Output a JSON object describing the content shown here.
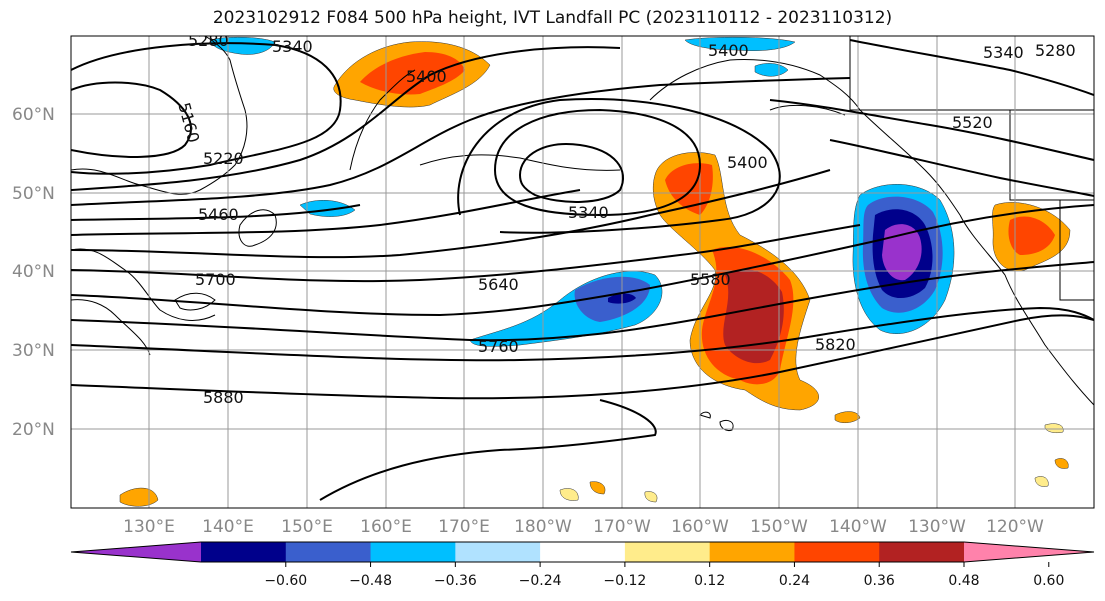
{
  "title": "2023102912 F084 500 hPa height, IVT Landfall PC (2023110112 - 2023110312)",
  "lat_labels": [
    "60°N",
    "50°N",
    "40°N",
    "30°N",
    "20°N"
  ],
  "lon_labels": [
    "130°E",
    "140°E",
    "150°E",
    "160°E",
    "170°E",
    "180°W",
    "170°W",
    "160°W",
    "150°W",
    "140°W",
    "130°W",
    "120°W"
  ],
  "contour_labels": [
    "5280",
    "5340",
    "5400",
    "5400",
    "5340",
    "5280",
    "5160",
    "5220",
    "5460",
    "5340",
    "5400",
    "5520",
    "5700",
    "5640",
    "5580",
    "5760",
    "5820",
    "5880"
  ],
  "colorbar": {
    "colors": [
      "#9932CC",
      "#00008B",
      "#3A5FCD",
      "#00BFFF",
      "#B0E2FF",
      "#FFFFFF",
      "#FFEC8B",
      "#FFA500",
      "#FF4500",
      "#B22222",
      "#FF82AB"
    ],
    "ticks": [
      "−0.60",
      "−0.48",
      "−0.36",
      "−0.24",
      "−0.12",
      "0.12",
      "0.24",
      "0.36",
      "0.48",
      "0.60"
    ]
  }
}
